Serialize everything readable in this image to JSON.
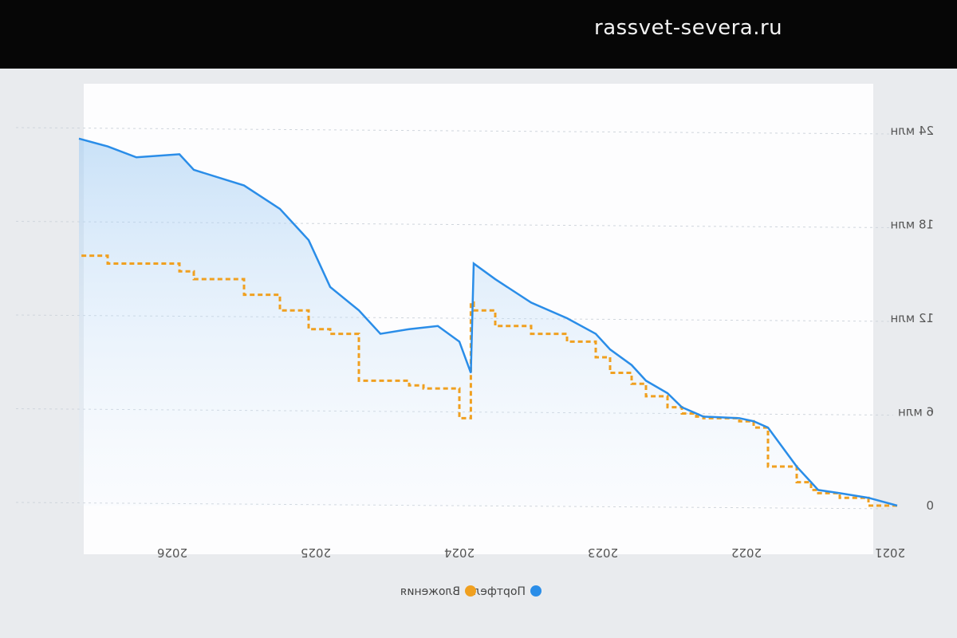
{
  "watermark": "rassvet-severa.ru",
  "colors": {
    "portfolio": "#2a8de8",
    "invested": "#f0a020",
    "grid": "#cfd5dc"
  },
  "chart_data": {
    "type": "line",
    "orientation": "mirrored (x axis reversed, text shown mirrored)",
    "x_ticks": [
      "2026",
      "2025",
      "2024",
      "2023",
      "2022",
      "2021"
    ],
    "y_ticks": [
      "24 млн",
      "18 млн",
      "12 млн",
      "6 млн",
      "0"
    ],
    "ylim": [
      0,
      24000000
    ],
    "grid": true,
    "legend_position": "bottom-center",
    "legend": [
      "Портфель",
      "Вложения"
    ],
    "series": [
      {
        "name": "Портфель",
        "color": "#2a8de8",
        "x": [
          2021.0,
          2021.2,
          2021.4,
          2021.55,
          2021.6,
          2021.7,
          2021.9,
          2022.0,
          2022.1,
          2022.35,
          2022.4,
          2022.5,
          2022.6,
          2022.75,
          2022.85,
          2023.0,
          2023.1,
          2023.3,
          2023.55,
          2023.8,
          2023.95,
          2023.97,
          2024.05,
          2024.2,
          2024.4,
          2024.6,
          2024.75,
          2024.95,
          2025.1,
          2025.3,
          2025.55,
          2025.9,
          2026.0,
          2026.3,
          2026.5,
          2026.7
        ],
        "values": [
          0,
          500000,
          800000,
          1000000,
          1500000,
          2500000,
          5000000,
          5400000,
          5600000,
          5700000,
          5900000,
          6300000,
          7200000,
          8000000,
          9000000,
          10000000,
          11000000,
          12000000,
          13000000,
          14500000,
          15500000,
          8500000,
          10500000,
          11500000,
          11300000,
          11000000,
          12500000,
          14000000,
          17000000,
          19000000,
          20500000,
          21500000,
          22500000,
          22300000,
          23000000,
          23500000
        ]
      },
      {
        "name": "Вложения",
        "color": "#f0a020",
        "x": [
          2021.0,
          2021.2,
          2021.4,
          2021.55,
          2021.6,
          2021.7,
          2021.9,
          2022.0,
          2022.1,
          2022.35,
          2022.4,
          2022.5,
          2022.6,
          2022.75,
          2022.85,
          2023.0,
          2023.1,
          2023.3,
          2023.55,
          2023.8,
          2023.95,
          2023.97,
          2024.05,
          2024.3,
          2024.4,
          2024.75,
          2024.95,
          2025.1,
          2025.3,
          2025.55,
          2025.9,
          2026.0,
          2026.3,
          2026.5,
          2026.7
        ],
        "values": [
          0,
          500000,
          800000,
          1000000,
          1500000,
          2500000,
          5000000,
          5400000,
          5600000,
          5700000,
          5900000,
          6300000,
          7000000,
          7800000,
          8500000,
          9500000,
          10500000,
          11000000,
          11500000,
          12500000,
          13000000,
          5600000,
          7500000,
          7700000,
          8000000,
          11000000,
          11300000,
          12500000,
          13500000,
          14500000,
          15000000,
          15500000,
          15500000,
          16000000,
          16000000
        ]
      }
    ]
  }
}
